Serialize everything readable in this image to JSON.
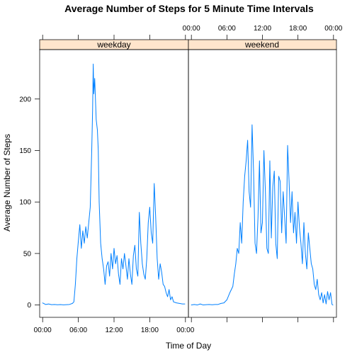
{
  "colors": {
    "background": "#ffffff",
    "line": "#0080ff",
    "strip": "#ffe5cc",
    "axis": "#000000"
  },
  "chart_data": {
    "type": "line",
    "title": "Average Number of Steps for 5 Minute Time Intervals",
    "xlabel": "Time of Day",
    "ylabel": "Average Number of Steps",
    "xlim": [
      -0.5,
      24.5
    ],
    "ylim": [
      -12,
      248
    ],
    "x_tick_values": [
      0,
      6,
      12,
      18,
      24
    ],
    "x_tick_labels": [
      "00:00",
      "06:00",
      "12:00",
      "18:00",
      "00:00"
    ],
    "y_tick_values": [
      0,
      50,
      100,
      150,
      200
    ],
    "y_tick_labels": [
      "0",
      "50",
      "100",
      "150",
      "200"
    ],
    "panels": [
      {
        "strip_label": "weekday",
        "series": {
          "name": "weekday",
          "points": [
            [
              0.0,
              2
            ],
            [
              0.5,
              0.5
            ],
            [
              1.0,
              1
            ],
            [
              1.5,
              0.3
            ],
            [
              2.0,
              0.5
            ],
            [
              2.5,
              0.2
            ],
            [
              3.0,
              0.4
            ],
            [
              3.5,
              0.1
            ],
            [
              4.0,
              0.3
            ],
            [
              4.5,
              0.5
            ],
            [
              5.0,
              1.5
            ],
            [
              5.25,
              3
            ],
            [
              5.5,
              20
            ],
            [
              5.75,
              45
            ],
            [
              6.0,
              62
            ],
            [
              6.25,
              78
            ],
            [
              6.5,
              55
            ],
            [
              6.75,
              72
            ],
            [
              7.0,
              60
            ],
            [
              7.25,
              76
            ],
            [
              7.5,
              65
            ],
            [
              7.75,
              80
            ],
            [
              8.0,
              95
            ],
            [
              8.25,
              150
            ],
            [
              8.4,
              190
            ],
            [
              8.5,
              234
            ],
            [
              8.6,
              205
            ],
            [
              8.75,
              220
            ],
            [
              9.0,
              180
            ],
            [
              9.2,
              170
            ],
            [
              9.35,
              150
            ],
            [
              9.5,
              100
            ],
            [
              9.75,
              60
            ],
            [
              10.0,
              45
            ],
            [
              10.25,
              35
            ],
            [
              10.5,
              20
            ],
            [
              10.75,
              38
            ],
            [
              11.0,
              42
            ],
            [
              11.25,
              28
            ],
            [
              11.5,
              50
            ],
            [
              11.75,
              35
            ],
            [
              12.0,
              55
            ],
            [
              12.25,
              40
            ],
            [
              12.5,
              48
            ],
            [
              12.75,
              30
            ],
            [
              13.0,
              20
            ],
            [
              13.25,
              45
            ],
            [
              13.5,
              35
            ],
            [
              13.75,
              50
            ],
            [
              14.0,
              38
            ],
            [
              14.25,
              25
            ],
            [
              14.5,
              45
            ],
            [
              14.75,
              30
            ],
            [
              15.0,
              20
            ],
            [
              15.25,
              48
            ],
            [
              15.5,
              58
            ],
            [
              15.75,
              35
            ],
            [
              16.0,
              28
            ],
            [
              16.25,
              90
            ],
            [
              16.5,
              60
            ],
            [
              16.75,
              40
            ],
            [
              17.0,
              30
            ],
            [
              17.25,
              25
            ],
            [
              17.5,
              45
            ],
            [
              17.75,
              80
            ],
            [
              18.0,
              95
            ],
            [
              18.25,
              70
            ],
            [
              18.5,
              60
            ],
            [
              18.75,
              118
            ],
            [
              19.0,
              85
            ],
            [
              19.25,
              45
            ],
            [
              19.5,
              25
            ],
            [
              19.75,
              40
            ],
            [
              20.0,
              32
            ],
            [
              20.25,
              20
            ],
            [
              20.5,
              18
            ],
            [
              20.75,
              12
            ],
            [
              21.0,
              8
            ],
            [
              21.25,
              15
            ],
            [
              21.5,
              5
            ],
            [
              21.75,
              8
            ],
            [
              22.0,
              3
            ],
            [
              22.5,
              2
            ],
            [
              23.0,
              1.5
            ],
            [
              23.5,
              1
            ],
            [
              23.9,
              1
            ]
          ]
        }
      },
      {
        "strip_label": "weekend",
        "series": {
          "name": "weekend",
          "points": [
            [
              0.0,
              0
            ],
            [
              0.5,
              0.5
            ],
            [
              1.0,
              0
            ],
            [
              1.5,
              1
            ],
            [
              2.0,
              0
            ],
            [
              2.5,
              0.3
            ],
            [
              3.0,
              0.5
            ],
            [
              3.5,
              0.2
            ],
            [
              4.0,
              0.5
            ],
            [
              4.5,
              0.5
            ],
            [
              5.0,
              1.5
            ],
            [
              5.5,
              2
            ],
            [
              6.0,
              5
            ],
            [
              6.5,
              12
            ],
            [
              7.0,
              18
            ],
            [
              7.25,
              30
            ],
            [
              7.5,
              40
            ],
            [
              7.75,
              55
            ],
            [
              8.0,
              50
            ],
            [
              8.25,
              80
            ],
            [
              8.5,
              60
            ],
            [
              8.75,
              100
            ],
            [
              9.0,
              125
            ],
            [
              9.25,
              140
            ],
            [
              9.5,
              160
            ],
            [
              9.75,
              110
            ],
            [
              10.0,
              95
            ],
            [
              10.25,
              175
            ],
            [
              10.5,
              130
            ],
            [
              10.75,
              60
            ],
            [
              11.0,
              50
            ],
            [
              11.25,
              85
            ],
            [
              11.5,
              140
            ],
            [
              11.75,
              70
            ],
            [
              12.0,
              80
            ],
            [
              12.25,
              150
            ],
            [
              12.5,
              110
            ],
            [
              12.75,
              55
            ],
            [
              13.0,
              50
            ],
            [
              13.25,
              140
            ],
            [
              13.5,
              65
            ],
            [
              13.75,
              115
            ],
            [
              14.0,
              130
            ],
            [
              14.25,
              60
            ],
            [
              14.5,
              45
            ],
            [
              14.75,
              125
            ],
            [
              15.0,
              120
            ],
            [
              15.25,
              70
            ],
            [
              15.5,
              110
            ],
            [
              15.75,
              85
            ],
            [
              16.0,
              60
            ],
            [
              16.25,
              155
            ],
            [
              16.5,
              120
            ],
            [
              16.75,
              80
            ],
            [
              17.0,
              110
            ],
            [
              17.25,
              70
            ],
            [
              17.5,
              90
            ],
            [
              17.75,
              60
            ],
            [
              18.0,
              100
            ],
            [
              18.25,
              75
            ],
            [
              18.5,
              60
            ],
            [
              18.75,
              40
            ],
            [
              19.0,
              80
            ],
            [
              19.25,
              50
            ],
            [
              19.5,
              35
            ],
            [
              19.75,
              70
            ],
            [
              20.0,
              55
            ],
            [
              20.25,
              40
            ],
            [
              20.5,
              35
            ],
            [
              20.75,
              20
            ],
            [
              21.0,
              15
            ],
            [
              21.25,
              25
            ],
            [
              21.5,
              10
            ],
            [
              21.75,
              5
            ],
            [
              22.0,
              12
            ],
            [
              22.25,
              2
            ],
            [
              22.5,
              10
            ],
            [
              22.75,
              1
            ],
            [
              23.0,
              13
            ],
            [
              23.25,
              5
            ],
            [
              23.5,
              12
            ],
            [
              23.75,
              0.5
            ],
            [
              23.9,
              0
            ]
          ]
        }
      }
    ]
  }
}
